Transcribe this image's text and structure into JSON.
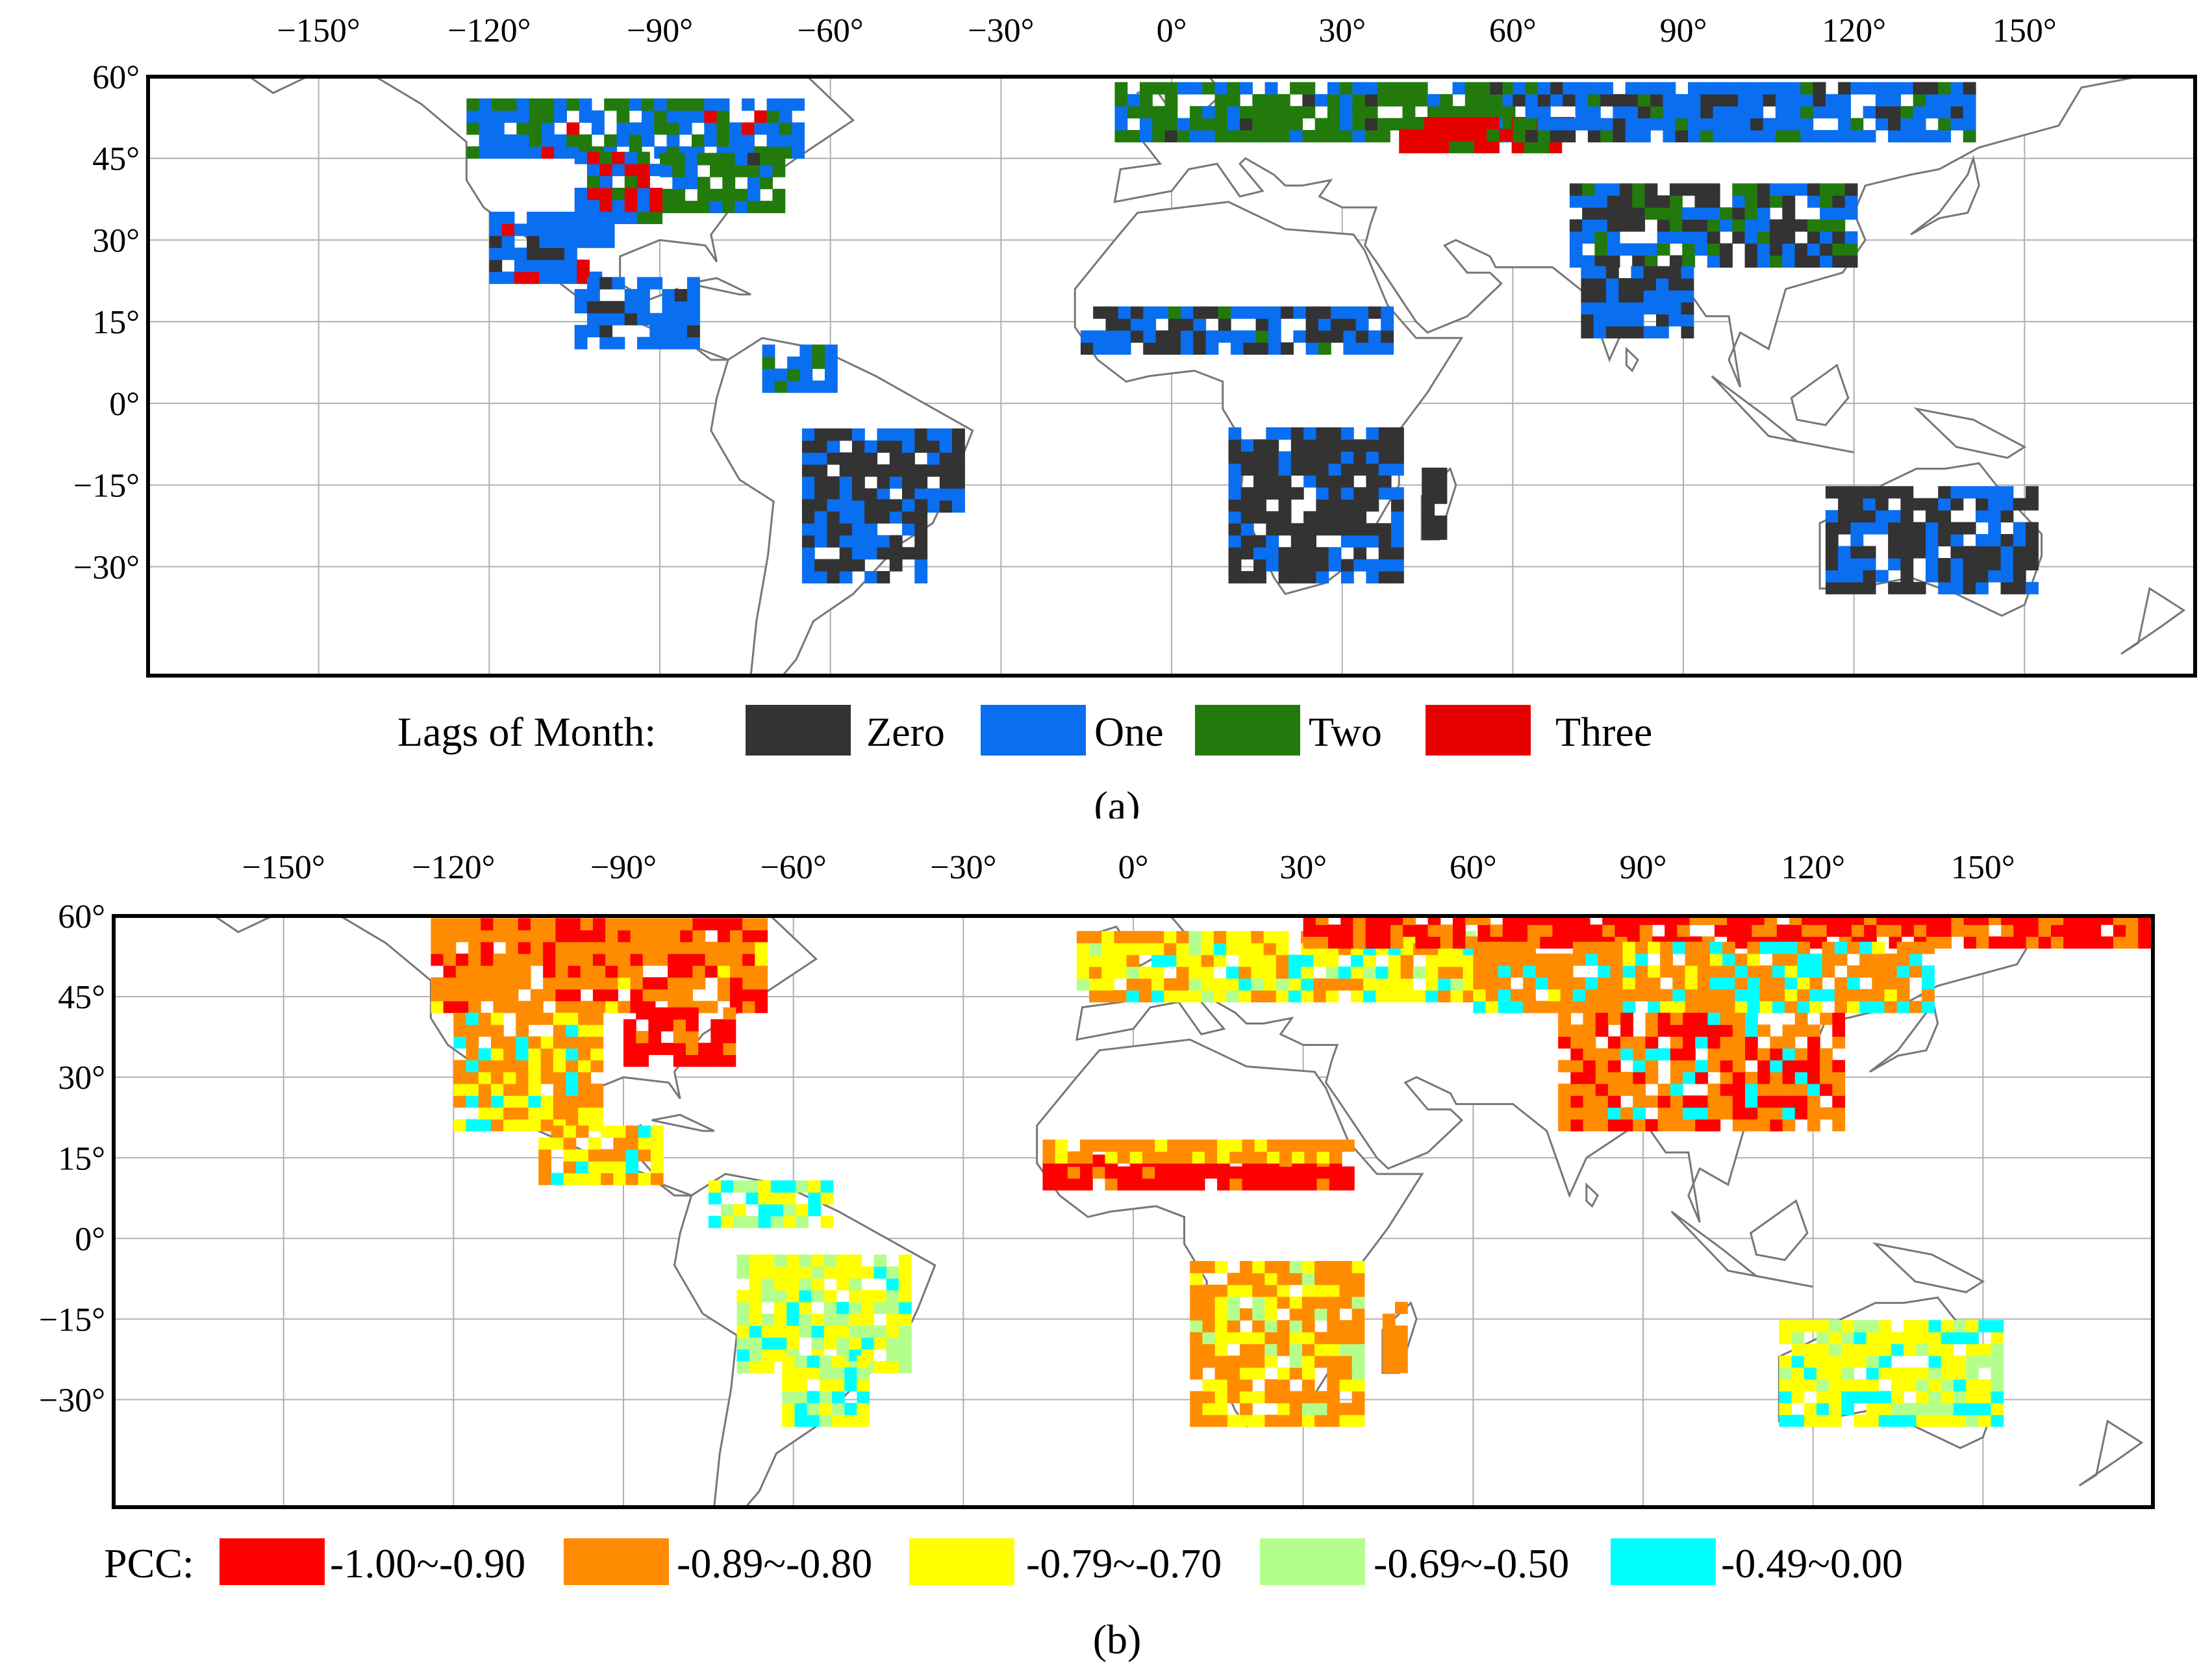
{
  "panel_a": {
    "caption": "(a)",
    "lon_ticks": [
      "−150°",
      "−120°",
      "−90°",
      "−60°",
      "−30°",
      "0°",
      "30°",
      "60°",
      "90°",
      "120°",
      "150°"
    ],
    "lat_ticks": [
      "60°",
      "45°",
      "30°",
      "15°",
      "0°",
      "−15°",
      "−30°"
    ],
    "legend_title": "Lags of Month:",
    "legend": [
      {
        "label": "Zero",
        "color": "#333333"
      },
      {
        "label": "One",
        "color": "#0a6ef0"
      },
      {
        "label": "Two",
        "color": "#237a0c"
      },
      {
        "label": "Three",
        "color": "#e60000"
      }
    ]
  },
  "panel_b": {
    "caption": "(b)",
    "lon_ticks": [
      "−150°",
      "−120°",
      "−90°",
      "−60°",
      "−30°",
      "0°",
      "30°",
      "60°",
      "90°",
      "120°",
      "150°"
    ],
    "lat_ticks": [
      "60°",
      "45°",
      "30°",
      "15°",
      "0°",
      "−15°",
      "−30°"
    ],
    "legend_title": "PCC:",
    "legend": [
      {
        "label": "-1.00~-0.90",
        "color": "#ff0000"
      },
      {
        "label": "-0.89~-0.80",
        "color": "#ff8c00"
      },
      {
        "label": "-0.79~-0.70",
        "color": "#ffff00"
      },
      {
        "label": "-0.69~-0.50",
        "color": "#b4ff8c"
      },
      {
        "label": "-0.49~0.00",
        "color": "#00ffff"
      }
    ]
  },
  "map_extent": {
    "lon": [
      -180,
      180
    ],
    "lat": [
      -50,
      60
    ]
  },
  "colors": {
    "coastline": "#777777",
    "grid": "#b0b0b0",
    "frame": "#000000"
  }
}
